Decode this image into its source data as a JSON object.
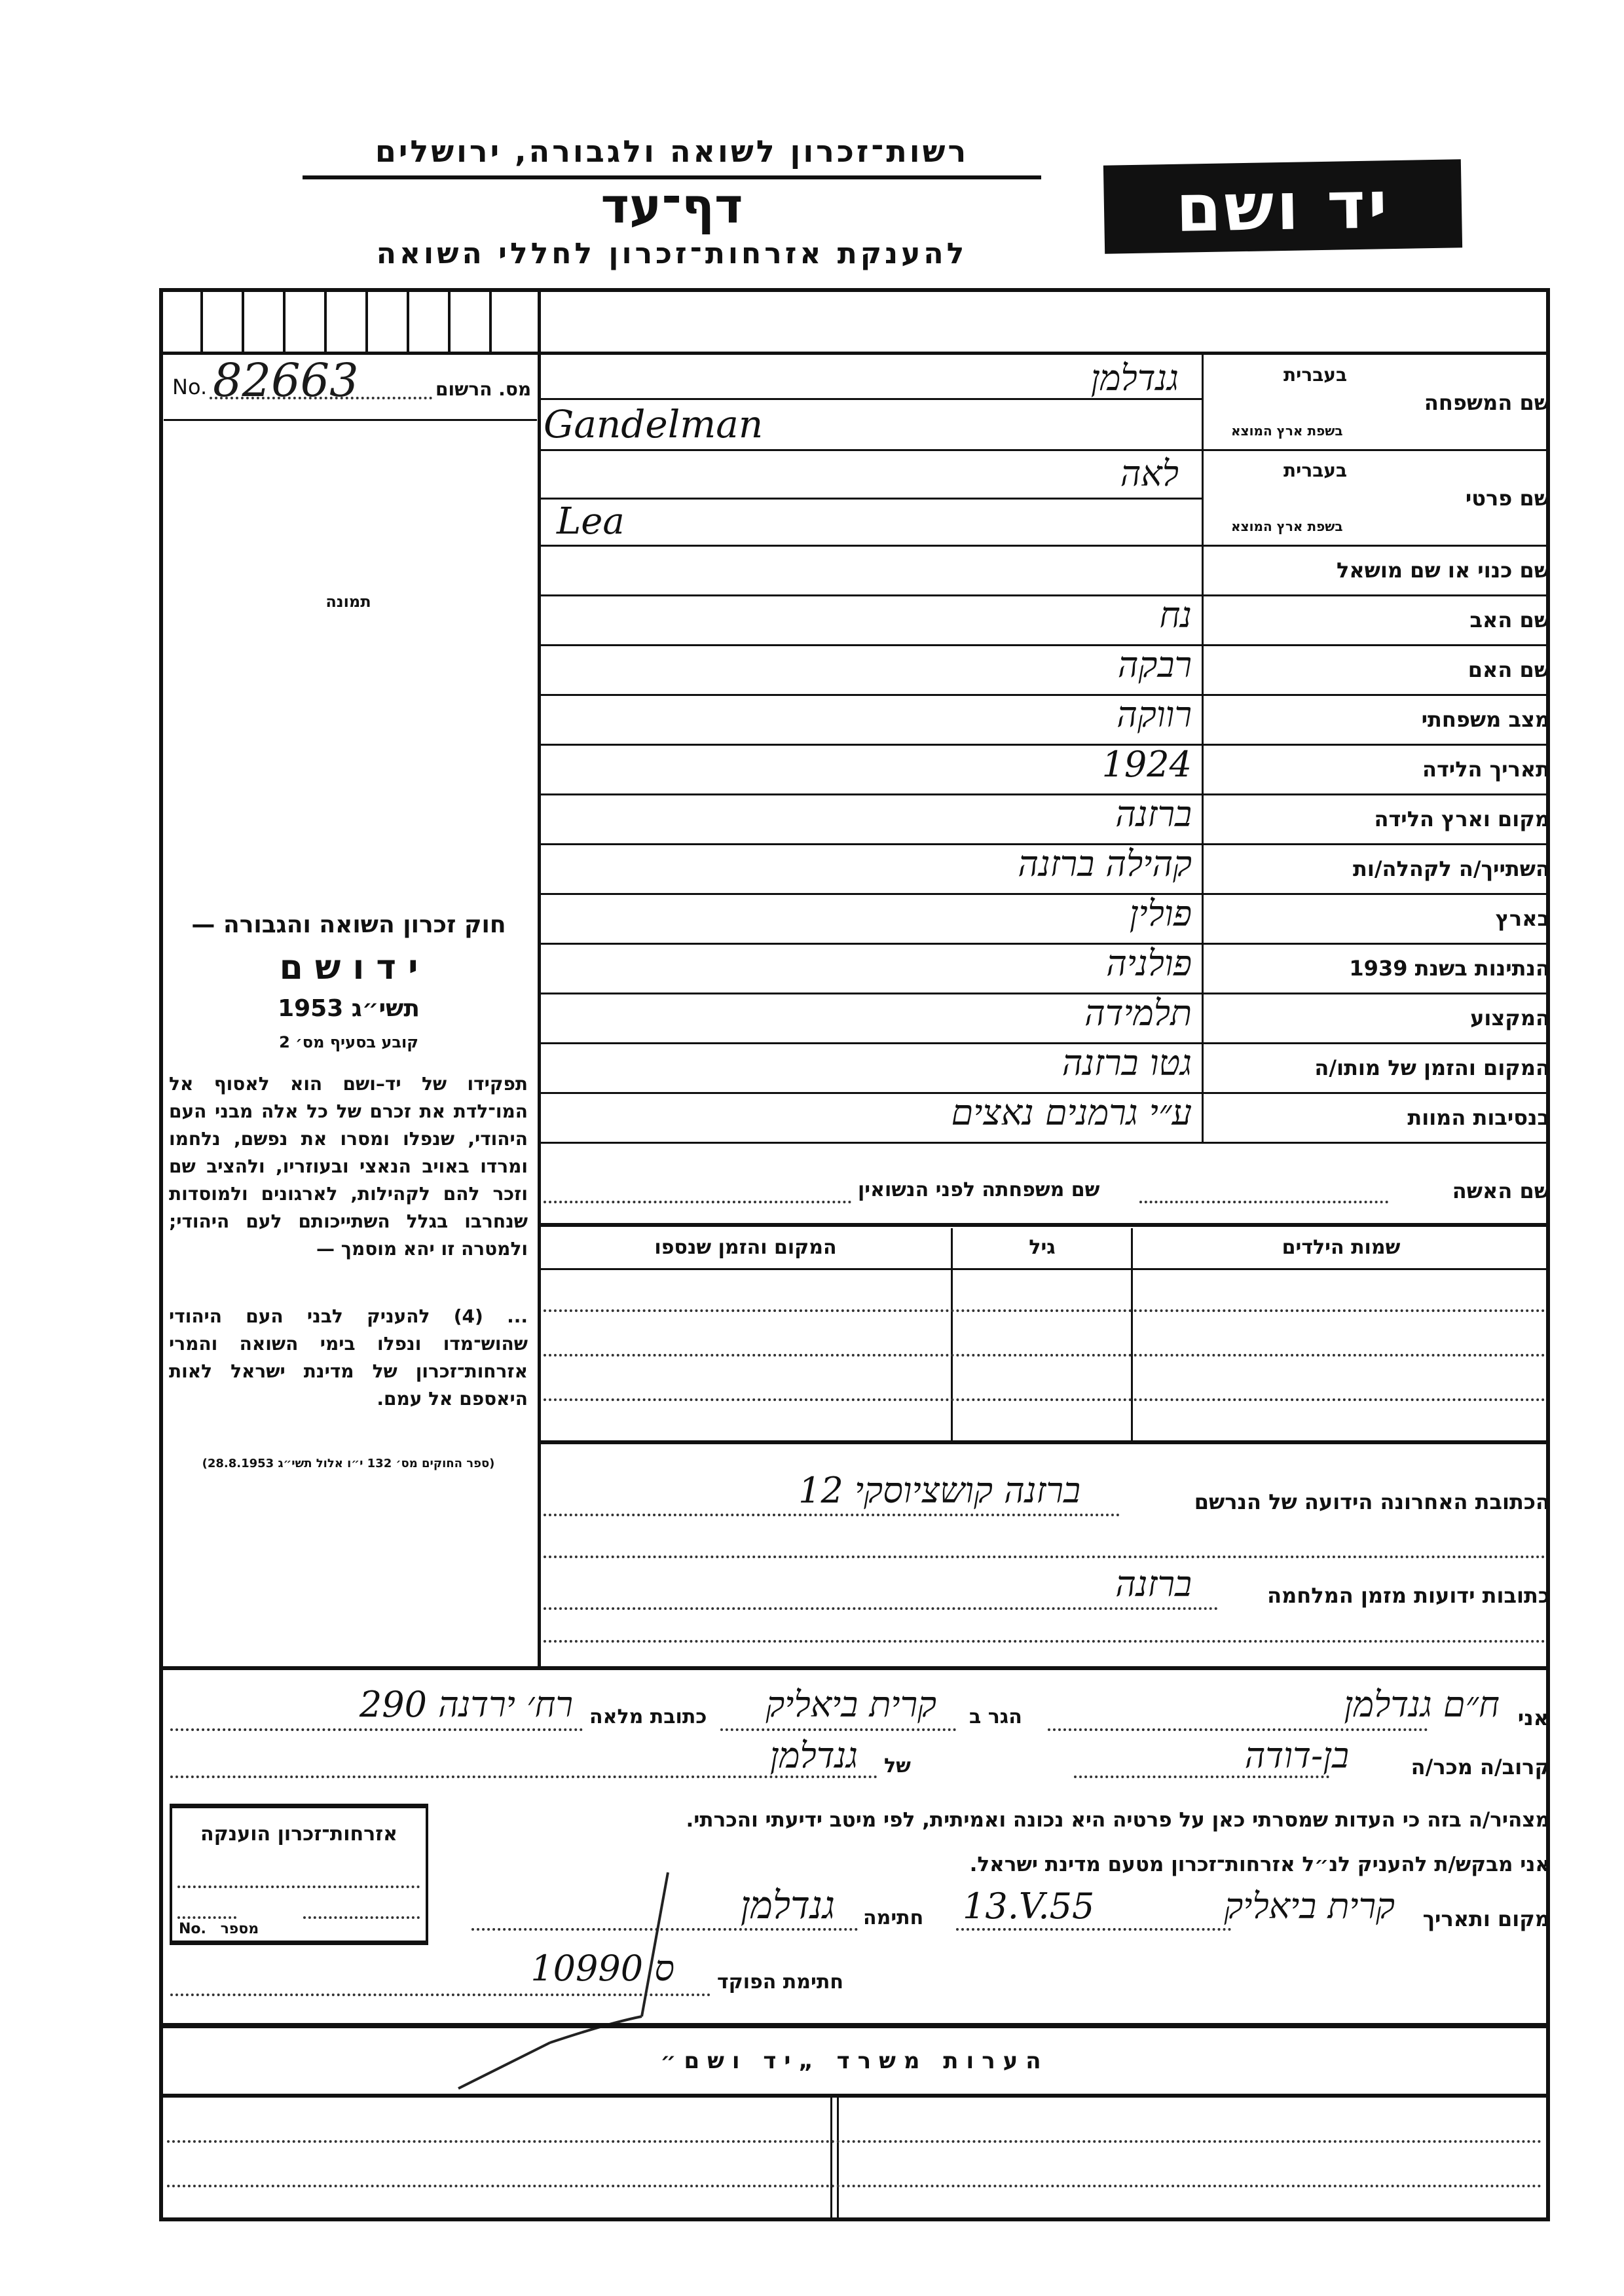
{
  "header": {
    "authority": "רשות־זכרון לשואה ולגבורה, ירושלים",
    "form_title": "דף־עד",
    "form_subtitle": "להענקת אזרחות־זכרון לחללי השואה",
    "logo_text": "יד ושם"
  },
  "registration": {
    "label": "מס. הרשום",
    "no_label": "No.",
    "number": "82663"
  },
  "photo_label": "תמונה",
  "law": {
    "title": "חוק זכרון השואה והגבורה —",
    "name": "י ד ו ש ם",
    "year": "תשי״ג 1953",
    "section": "קובע בסעיף מס׳ 2",
    "paragraph1": "תפקידו של יד–ושם הוא לאסוף אל המו־לדת את זכרם של כל אלה מבני העם היהודי, שנפלו ומסרו את נפשם, נלחמו ומרדו באויב הנאצי ובעוזריו, ולהציב שם וזכר להם לקהילות, לארגונים ולמוסדות שנחרבו בגלל השתייכותם לעם היהודי; ולמטרה זו יהא מוסמך —",
    "paragraph2": "... (4) להעניק לבני העם היהודי שהוש־מדו ונפלו בימי השואה והמרי אזרחות־זכרון של מדינת ישראל לאות היאספם אל עמם.",
    "footnote": "(ספר החוקים מס׳ 132 י״ו אלול תשי״ג 28.8.1953)"
  },
  "fields": {
    "family_name": {
      "label": "שם המשפחה",
      "hebrew_label": "בעברית",
      "origin_label": "בשפת ארץ המוצא",
      "hebrew_value": "גנדלמן",
      "origin_value": "Gandelman"
    },
    "first_name": {
      "label": "שם פרטי",
      "hebrew_label": "בעברית",
      "origin_label": "בשפת ארץ המוצא",
      "hebrew_value": "לאה",
      "origin_value": "Lea"
    },
    "rows": [
      {
        "label": "שם כנוי או שם מושאל",
        "value": ""
      },
      {
        "label": "שם האב",
        "value": "נח"
      },
      {
        "label": "שם האם",
        "value": "רבקה"
      },
      {
        "label": "מצב משפחתי",
        "value": "רווקה"
      },
      {
        "label": "תאריך הלידה",
        "value": "1924"
      },
      {
        "label": "מקום וארץ הלידה",
        "value": "ברזנה"
      },
      {
        "label": "השתייך/ה לקהלה/ות",
        "value": "קהילה ברזנה"
      },
      {
        "label": "בארץ",
        "value": "פולין"
      },
      {
        "label": "הנתינות בשנת 1939",
        "value": "פולניה"
      },
      {
        "label": "המקצוע",
        "value": "תלמידה"
      },
      {
        "label": "המקום והזמן של מותו/ה",
        "value": "גטו ברזנה"
      },
      {
        "label": "בנסיבות המוות",
        "value": "ע״י גרמנים נאצים"
      }
    ]
  },
  "wife": {
    "label": "שם האשה",
    "maiden_label": "שם משפחתה לפני הנשואין"
  },
  "children_table": {
    "headers": [
      "שמות הילדים",
      "גיל",
      "המקום והזמן שנספו"
    ]
  },
  "addresses": {
    "last_label": "הכתובת האחרונה הידועה של הנרשם",
    "last_value": "ברזנה קושציוסקי 12",
    "wartime_label": "כתובות ידועות מזמן המלחמה",
    "wartime_value": "ברזנה"
  },
  "declaration": {
    "i_label": "אני",
    "declarant_name": "ח״ם גנדלמן",
    "residing_label": "הגר ב",
    "residing_value": "קרית ביאליק",
    "full_address_label": "כתובת מלאה",
    "full_address_value": "רח׳ ירדנה 290",
    "relative_label": "קרוב/ה מכר/ה",
    "relation_value": "בן-דודה",
    "of_label": "של",
    "of_value": "גנדלמן",
    "statement": "מצהיר/ה בזה כי העדות שמסרתי כאן על פרטיה היא נכונה ואמיתית, לפי מיטב ידיעתי והכרתי.",
    "request": "אני מבקש/ת להעניק לנ״ל אזרחות־זכרון מטעם מדינת ישראל.",
    "place_date_label": "מקום ותאריך",
    "place_value": "קרית ביאליק",
    "date_value": "13.V.55",
    "signature_label": "חתימה",
    "signature_value": "גנדלמן",
    "enumerator_label": "חתימת הפוקד",
    "enumerator_value": "10990 ס"
  },
  "citizenship_box": {
    "title": "אזרחות־זכרון הוענקה",
    "number_label": "מספר",
    "no_label": "No."
  },
  "remarks": {
    "title": "הערות משרד „יד ושם״"
  }
}
